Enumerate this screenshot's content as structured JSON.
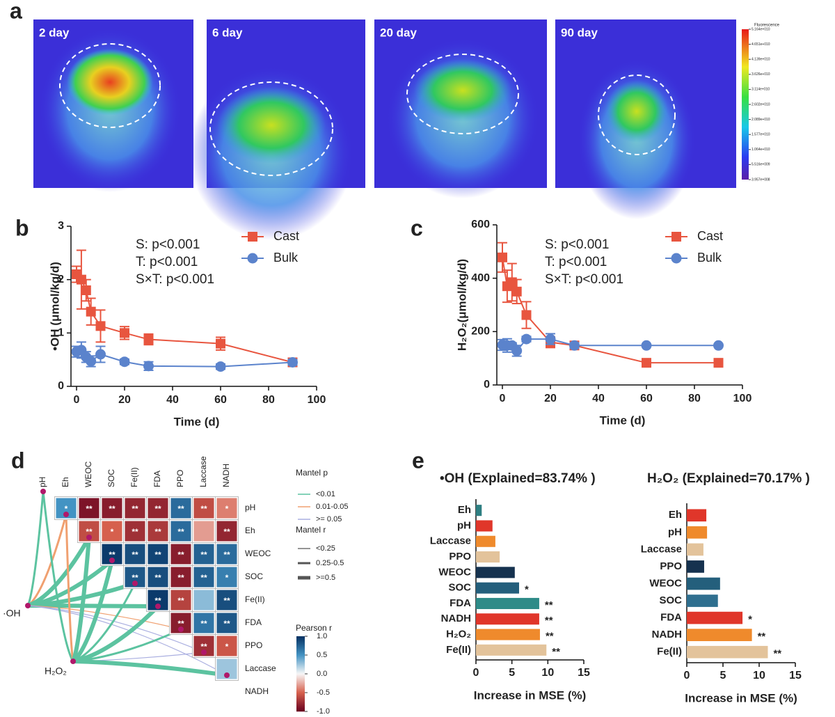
{
  "panel_labels": [
    "a",
    "b",
    "c",
    "d",
    "e"
  ],
  "images": {
    "labels": [
      "2 day",
      "6 day",
      "20 day",
      "90 day"
    ],
    "colorbar": {
      "title": "Fluorescence",
      "lim": [
        395700000,
        51640000000
      ],
      "ticks": [
        {
          "value": 51640000000,
          "label": "5.164e+010"
        },
        {
          "value": 46510000000,
          "label": "4.651e+010"
        },
        {
          "value": 41390000000,
          "label": "4.139e+010"
        },
        {
          "value": 36260000000,
          "label": "3.626e+010"
        },
        {
          "value": 31140000000,
          "label": "3.114e+010"
        },
        {
          "value": 26020000000,
          "label": "2.602e+010"
        },
        {
          "value": 20890000000,
          "label": "2.089e+010"
        },
        {
          "value": 15770000000,
          "label": "1.577e+010"
        },
        {
          "value": 10640000000,
          "label": "1.064e+010"
        },
        {
          "value": 5516000000,
          "label": "5.516e+009"
        },
        {
          "value": 395700000,
          "label": "3.957e+008"
        }
      ]
    }
  },
  "chart_data": [
    {
      "type": "line",
      "y_label": "•OH (μmol/kg/d)",
      "x_label": "Time (d)",
      "x": [
        0,
        2,
        4,
        6,
        10,
        20,
        30,
        60,
        90
      ],
      "series": [
        {
          "name": "Cast",
          "color": "#e8553f",
          "marker": "square",
          "values": [
            2.1,
            2.0,
            1.8,
            1.4,
            1.13,
            1.0,
            0.88,
            0.8,
            0.45
          ],
          "errors": [
            0.15,
            0.55,
            0.2,
            0.25,
            0.3,
            0.12,
            0.1,
            0.12,
            0.05
          ]
        },
        {
          "name": "Bulk",
          "color": "#5b83cc",
          "marker": "circle",
          "values": [
            0.65,
            0.68,
            0.55,
            0.47,
            0.6,
            0.46,
            0.38,
            0.37,
            0.45
          ],
          "errors": [
            0.1,
            0.15,
            0.1,
            0.1,
            0.15,
            0.05,
            0.08,
            0.05,
            0.05
          ]
        }
      ],
      "xlim": [
        0,
        100
      ],
      "xticks": [
        0,
        20,
        40,
        60,
        80,
        100
      ],
      "ylim": [
        0,
        3
      ],
      "yticks": [
        0,
        1,
        2,
        3
      ],
      "annotations": [
        "S: p<0.001",
        "T: p<0.001",
        "S×T: p<0.001"
      ]
    },
    {
      "type": "line",
      "y_label": "H₂O₂(μmol/kg/d)",
      "x_label": "Time (d)",
      "x": [
        0,
        2,
        4,
        6,
        10,
        20,
        30,
        60,
        90
      ],
      "series": [
        {
          "name": "Cast",
          "color": "#e8553f",
          "marker": "square",
          "values": [
            478,
            370,
            385,
            350,
            262,
            160,
            148,
            83,
            83
          ],
          "errors": [
            55,
            60,
            70,
            45,
            50,
            20,
            10,
            5,
            5
          ]
        },
        {
          "name": "Bulk",
          "color": "#5b83cc",
          "marker": "circle",
          "values": [
            150,
            148,
            148,
            128,
            172,
            172,
            148,
            148,
            148
          ],
          "errors": [
            20,
            25,
            10,
            20,
            10,
            20,
            10,
            5,
            5
          ]
        }
      ],
      "xlim": [
        0,
        100
      ],
      "xticks": [
        0,
        20,
        40,
        60,
        80,
        100
      ],
      "ylim": [
        0,
        600
      ],
      "yticks": [
        0,
        200,
        400,
        600
      ],
      "annotations": [
        "S: p<0.001",
        "T: p<0.001",
        "S×T: p<0.001"
      ]
    },
    {
      "type": "mantel",
      "variables": [
        "pH",
        "Eh",
        "WEOC",
        "SOC",
        "Fe(II)",
        "FDA",
        "PPO",
        "Laccase",
        "NADH"
      ],
      "r": [
        [
          0.5,
          -0.9,
          -0.85,
          -0.8,
          -0.8,
          0.7,
          -0.6,
          -0.4
        ],
        [
          -0.6,
          -0.5,
          -0.75,
          -0.7,
          0.7,
          -0.3,
          -0.8
        ],
        [
          0.95,
          0.85,
          0.9,
          -0.85,
          0.75,
          0.7
        ],
        [
          0.8,
          0.85,
          -0.85,
          0.75,
          0.6
        ],
        [
          0.95,
          -0.65,
          0.3,
          0.85
        ],
        [
          -0.85,
          0.65,
          0.8
        ],
        [
          -0.75,
          -0.55
        ],
        [
          0.25
        ]
      ],
      "significance": [
        [
          "*",
          "**",
          "**",
          "**",
          "**",
          "**",
          "**",
          "*"
        ],
        [
          "**",
          "*",
          "**",
          "**",
          "**",
          null,
          "**"
        ],
        [
          "**",
          "**",
          "**",
          "**",
          "**",
          "**"
        ],
        [
          "**",
          "**",
          "**",
          "**",
          "*"
        ],
        [
          "**",
          "**",
          null,
          "**"
        ],
        [
          "**",
          "**",
          "**"
        ],
        [
          "**",
          "*"
        ],
        [
          null
        ]
      ],
      "clim": [
        -1,
        1
      ],
      "colorscale": [
        "#67001f",
        "#d6604d",
        "#f7f7f7",
        "#4393c3",
        "#053061"
      ],
      "colorbar_title": "Pearson r",
      "colorbar_ticks": [
        {
          "value": 1,
          "label": "1.0"
        },
        {
          "value": 0.5,
          "label": "0.5"
        },
        {
          "value": 0,
          "label": "0.0"
        },
        {
          "value": -0.5,
          "label": "-0.5"
        },
        {
          "value": -1,
          "label": "-1.0"
        }
      ],
      "sources": [
        "·OH",
        "H₂O₂"
      ],
      "mantel_p": {
        "title": "Mantel p",
        "labels": [
          "<0.01",
          "0.01-0.05",
          ">= 0.05"
        ],
        "colors": [
          "#5cc3a0",
          "#f0a070",
          "#a9aee0"
        ]
      },
      "mantel_r": {
        "title": "Mantel r",
        "labels": [
          "<0.25",
          "0.25-0.5",
          ">=0.5"
        ]
      },
      "links": [
        {
          "source": 0,
          "target": 0,
          "p": "<0.01",
          "r": "0.25-0.5"
        },
        {
          "source": 0,
          "target": 1,
          "p": "0.01-0.05",
          "r": "0.25-0.5"
        },
        {
          "source": 0,
          "target": 2,
          "p": "<0.01",
          "r": ">=0.5"
        },
        {
          "source": 0,
          "target": 3,
          "p": "<0.01",
          "r": ">=0.5"
        },
        {
          "source": 0,
          "target": 4,
          "p": "<0.01",
          "r": ">=0.5"
        },
        {
          "source": 0,
          "target": 5,
          "p": "<0.01",
          "r": ">=0.5"
        },
        {
          "source": 0,
          "target": 6,
          "p": "0.01-0.05",
          "r": "<0.25"
        },
        {
          "source": 0,
          "target": 7,
          "p": ">= 0.05",
          "r": "<0.25"
        },
        {
          "source": 0,
          "target": 8,
          "p": ">= 0.05",
          "r": "<0.25"
        },
        {
          "source": 1,
          "target": 0,
          "p": "<0.01",
          "r": "0.25-0.5"
        },
        {
          "source": 1,
          "target": 1,
          "p": "0.01-0.05",
          "r": "0.25-0.5"
        },
        {
          "source": 1,
          "target": 2,
          "p": "<0.01",
          "r": ">=0.5"
        },
        {
          "source": 1,
          "target": 3,
          "p": "<0.01",
          "r": ">=0.5"
        },
        {
          "source": 1,
          "target": 4,
          "p": "<0.01",
          "r": "0.25-0.5"
        },
        {
          "source": 1,
          "target": 5,
          "p": "<0.01",
          "r": ">=0.5"
        },
        {
          "source": 1,
          "target": 6,
          "p": "<0.01",
          "r": "0.25-0.5"
        },
        {
          "source": 1,
          "target": 7,
          "p": ">= 0.05",
          "r": "<0.25"
        },
        {
          "source": 1,
          "target": 8,
          "p": "<0.01",
          "r": ">=0.5"
        }
      ]
    },
    {
      "type": "barh",
      "title": "•OH (Explained=83.74% )",
      "x_label": "Increase in MSE (%)",
      "categories": [
        "Eh",
        "pH",
        "Laccase",
        "PPO",
        "WEOC",
        "SOC",
        "FDA",
        "NADH",
        "H₂O₂",
        "Fe(II)"
      ],
      "values": [
        0.8,
        2.3,
        2.7,
        3.3,
        5.4,
        6.0,
        8.8,
        8.8,
        8.9,
        9.8
      ],
      "significance": [
        null,
        null,
        null,
        null,
        null,
        "*",
        "**",
        "**",
        "**",
        "**"
      ],
      "colors": [
        "#2f7f82",
        "#e0362a",
        "#ef8a2c",
        "#e3c39b",
        "#16324f",
        "#245f7c",
        "#2e8b88",
        "#e0362a",
        "#ef8a2c",
        "#e3c39b"
      ],
      "xlim": [
        0,
        15
      ],
      "xticks": [
        0,
        5,
        10,
        15
      ]
    },
    {
      "type": "barh",
      "title": "H₂O₂ (Explained=70.17% )",
      "x_label": "Increase in MSE (%)",
      "categories": [
        "Eh",
        "pH",
        "Laccase",
        "PPO",
        "WEOC",
        "SOC",
        "FDA",
        "NADH",
        "Fe(II)"
      ],
      "values": [
        2.7,
        2.8,
        2.3,
        2.4,
        4.6,
        4.3,
        7.7,
        9.0,
        11.2
      ],
      "significance": [
        null,
        null,
        null,
        null,
        null,
        null,
        "*",
        "**",
        "**"
      ],
      "colors": [
        "#e0362a",
        "#ef8a2c",
        "#e3c39b",
        "#16324f",
        "#245f7c",
        "#2f6f8f",
        "#e0362a",
        "#ef8a2c",
        "#e3c39b"
      ],
      "xlim": [
        0,
        15
      ],
      "xticks": [
        0,
        5,
        10,
        15
      ]
    }
  ]
}
